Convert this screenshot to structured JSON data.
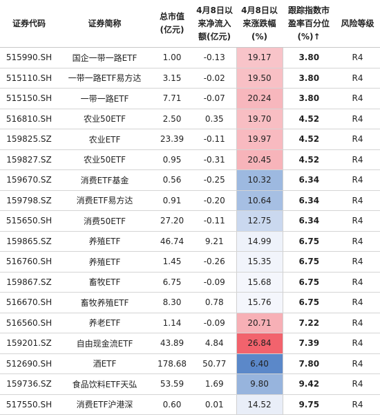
{
  "table": {
    "headers": [
      [
        "证券代码"
      ],
      [
        "证券简称"
      ],
      [
        "总市值",
        "(亿元)"
      ],
      [
        "4月8日以",
        "来净流入",
        "额(亿元)"
      ],
      [
        "4月8日以",
        "来涨跌幅",
        "(%)"
      ],
      [
        "跟踪指数市",
        "盈率百分位",
        "(%)↑"
      ],
      [
        "风险等级"
      ]
    ],
    "rows": [
      {
        "code": "515990.SH",
        "name": "国企一带一路ETF",
        "mcap": "1.00",
        "flow": "-0.13",
        "chg": "19.17",
        "pe": "3.80",
        "risk": "R4",
        "color": "#f8c4c9"
      },
      {
        "code": "515110.SH",
        "name": "一带一路ETF易方达",
        "mcap": "3.15",
        "flow": "-0.02",
        "chg": "19.50",
        "pe": "3.80",
        "risk": "R4",
        "color": "#f8c0c5"
      },
      {
        "code": "515150.SH",
        "name": "一带一路ETF",
        "mcap": "7.71",
        "flow": "-0.07",
        "chg": "20.24",
        "pe": "3.80",
        "risk": "R4",
        "color": "#f7b7bd"
      },
      {
        "code": "516810.SH",
        "name": "农业50ETF",
        "mcap": "2.50",
        "flow": "0.35",
        "chg": "19.70",
        "pe": "4.52",
        "risk": "R4",
        "color": "#f8bec3"
      },
      {
        "code": "159825.SZ",
        "name": "农业ETF",
        "mcap": "23.39",
        "flow": "-0.11",
        "chg": "19.97",
        "pe": "4.52",
        "risk": "R4",
        "color": "#f8bac0"
      },
      {
        "code": "159827.SZ",
        "name": "农业50ETF",
        "mcap": "0.95",
        "flow": "-0.31",
        "chg": "20.45",
        "pe": "4.52",
        "risk": "R4",
        "color": "#f7b4ba"
      },
      {
        "code": "159670.SZ",
        "name": "消费ETF基金",
        "mcap": "0.56",
        "flow": "-0.25",
        "chg": "10.32",
        "pe": "6.34",
        "risk": "R4",
        "color": "#9db9e0"
      },
      {
        "code": "159798.SZ",
        "name": "消费ETF易方达",
        "mcap": "0.91",
        "flow": "-0.20",
        "chg": "10.64",
        "pe": "6.34",
        "risk": "R4",
        "color": "#a6bfe3"
      },
      {
        "code": "515650.SH",
        "name": "消费50ETF",
        "mcap": "27.20",
        "flow": "-0.11",
        "chg": "12.75",
        "pe": "6.34",
        "risk": "R4",
        "color": "#cad8ef"
      },
      {
        "code": "159865.SZ",
        "name": "养殖ETF",
        "mcap": "46.74",
        "flow": "9.21",
        "chg": "14.99",
        "pe": "6.75",
        "risk": "R4",
        "color": "#eef2fa"
      },
      {
        "code": "516760.SH",
        "name": "养殖ETF",
        "mcap": "1.45",
        "flow": "-0.26",
        "chg": "15.35",
        "pe": "6.75",
        "risk": "R4",
        "color": "#f1f4fb"
      },
      {
        "code": "159867.SZ",
        "name": "畜牧ETF",
        "mcap": "6.75",
        "flow": "-0.09",
        "chg": "15.68",
        "pe": "6.75",
        "risk": "R4",
        "color": "#f4f6fc"
      },
      {
        "code": "516670.SH",
        "name": "畜牧养殖ETF",
        "mcap": "8.30",
        "flow": "0.78",
        "chg": "15.76",
        "pe": "6.75",
        "risk": "R4",
        "color": "#f4f6fc"
      },
      {
        "code": "516560.SH",
        "name": "养老ETF",
        "mcap": "1.14",
        "flow": "-0.09",
        "chg": "20.71",
        "pe": "7.22",
        "risk": "R4",
        "color": "#f7b0b6"
      },
      {
        "code": "159201.SZ",
        "name": "自由现金流ETF",
        "mcap": "43.89",
        "flow": "4.84",
        "chg": "26.84",
        "pe": "7.39",
        "risk": "R4",
        "color": "#f2636d"
      },
      {
        "code": "512690.SH",
        "name": "酒ETF",
        "mcap": "178.68",
        "flow": "50.77",
        "chg": "6.40",
        "pe": "7.80",
        "risk": "R4",
        "color": "#5b88c9"
      },
      {
        "code": "159736.SZ",
        "name": "食品饮料ETF天弘",
        "mcap": "53.59",
        "flow": "1.69",
        "chg": "9.80",
        "pe": "9.42",
        "risk": "R4",
        "color": "#97b4dd"
      },
      {
        "code": "517550.SH",
        "name": "消费ETF沪港深",
        "mcap": "0.60",
        "flow": "0.01",
        "chg": "14.52",
        "pe": "9.75",
        "risk": "R4",
        "color": "#e9eef8"
      }
    ]
  }
}
